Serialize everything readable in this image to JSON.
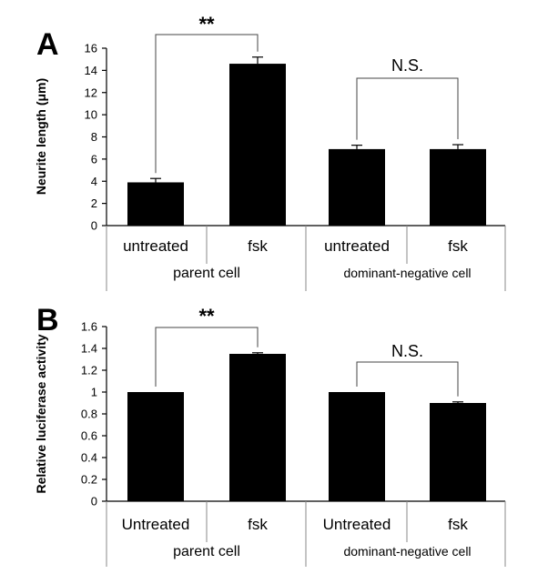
{
  "chart_data": [
    {
      "type": "bar",
      "panel": "A",
      "ylabel": "Neurite length (μm)",
      "ylim": [
        0,
        16
      ],
      "yticks": [
        0,
        2,
        4,
        6,
        8,
        10,
        12,
        14,
        16
      ],
      "categories": [
        "untreated",
        "fsk",
        "untreated",
        "fsk"
      ],
      "groups": [
        "parent cell",
        "dominant-negative cell"
      ],
      "values": [
        3.9,
        14.6,
        6.9,
        6.9
      ],
      "errors": [
        0.35,
        0.6,
        0.35,
        0.4
      ],
      "significance": [
        {
          "label": "**",
          "between": [
            0,
            1
          ]
        },
        {
          "label": "N.S.",
          "between": [
            2,
            3
          ]
        }
      ],
      "grid": false,
      "colors": {
        "bar": "#000000"
      }
    },
    {
      "type": "bar",
      "panel": "B",
      "ylabel": "Relative luciferase activity",
      "ylim": [
        0,
        1.6
      ],
      "yticks": [
        0,
        0.2,
        0.4,
        0.6,
        0.8,
        1,
        1.2,
        1.4,
        1.6
      ],
      "categories": [
        "Untreated",
        "fsk",
        "Untreated",
        "fsk"
      ],
      "groups": [
        "parent cell",
        "dominant-negative cell"
      ],
      "values": [
        1.0,
        1.35,
        1.0,
        0.9
      ],
      "errors": [
        0,
        0.01,
        0,
        0.01
      ],
      "significance": [
        {
          "label": "**",
          "between": [
            0,
            1
          ]
        },
        {
          "label": "N.S.",
          "between": [
            2,
            3
          ]
        }
      ],
      "grid": false,
      "colors": {
        "bar": "#000000"
      }
    }
  ]
}
